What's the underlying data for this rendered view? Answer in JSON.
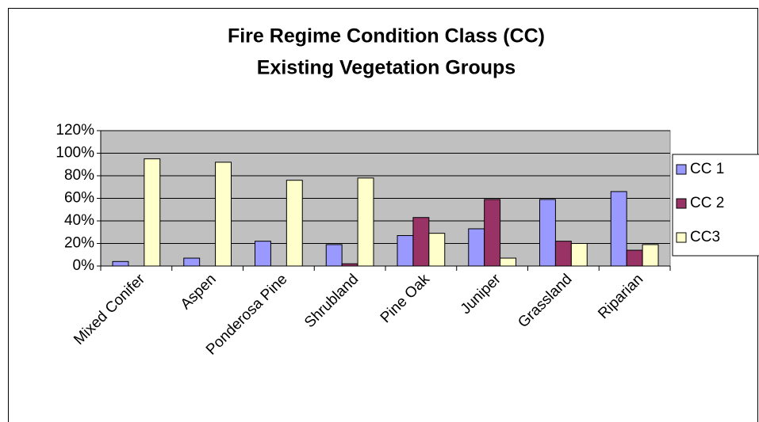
{
  "chart_data": {
    "type": "bar",
    "title": [
      "Fire Regime Condition Class (CC)",
      "Existing Vegetation Groups"
    ],
    "categories": [
      "Mixed Conifer",
      "Aspen",
      "Ponderosa Pine",
      "Shrubland",
      "Pine Oak",
      "Juniper",
      "Grassland",
      "Riparian"
    ],
    "series": [
      {
        "name": "CC 1",
        "color": "#9999ff",
        "values": [
          4,
          7,
          22,
          19,
          27,
          33,
          59,
          66
        ]
      },
      {
        "name": "CC 2",
        "color": "#993366",
        "values": [
          0,
          0,
          0,
          2,
          43,
          59,
          22,
          14
        ]
      },
      {
        "name": "CC3",
        "color": "#ffffcc",
        "values": [
          95,
          92,
          76,
          78,
          29,
          7,
          20,
          19
        ]
      }
    ],
    "ylim": [
      0,
      120
    ],
    "yticks": [
      {
        "value": 0,
        "label": "0%"
      },
      {
        "value": 20,
        "label": "20%"
      },
      {
        "value": 40,
        "label": "40%"
      },
      {
        "value": 60,
        "label": "60%"
      },
      {
        "value": 80,
        "label": "80%"
      },
      {
        "value": 100,
        "label": "100%"
      },
      {
        "value": 120,
        "label": "120%"
      }
    ],
    "grid": true,
    "legend": "right"
  }
}
